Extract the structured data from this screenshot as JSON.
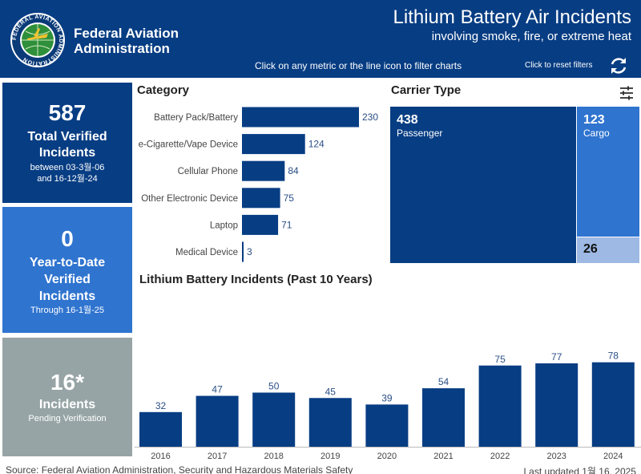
{
  "header": {
    "agency_line1": "Federal Aviation",
    "agency_line2": "Administration",
    "seal_text": "FEDERAL AVIATION ADMINISTRATION",
    "title": "Lithium Battery Air Incidents",
    "subtitle": "involving smoke, fire, or extreme heat",
    "filter_hint": "Click on any metric or the line icon to filter charts",
    "reset_hint": "Click to reset filters",
    "reset_icon": "refresh-icon"
  },
  "kpis": {
    "total": {
      "value": "587",
      "label_1": "Total Verified",
      "label_2": "Incidents",
      "note_1": "between 03-3월-06",
      "note_2": "and 16-12월-24"
    },
    "ytd": {
      "value": "0",
      "label_1": "Year-to-Date",
      "label_2": "Verified",
      "label_3": "Incidents",
      "note": "Through 16-1월-25"
    },
    "pending": {
      "value": "16*",
      "label": "Incidents",
      "note": "Pending Verification"
    }
  },
  "category": {
    "title": "Category",
    "chart_data": {
      "type": "bar",
      "orientation": "horizontal",
      "categories": [
        "Battery Pack/Battery",
        "e-Cigarette/Vape Device",
        "Cellular Phone",
        "Other Electronic Device",
        "Laptop",
        "Medical Device"
      ],
      "values": [
        230,
        124,
        84,
        75,
        71,
        3
      ],
      "color": "#073d83"
    }
  },
  "carrier": {
    "title": "Carrier Type",
    "filter_icon": "filter-lines-icon",
    "passenger": {
      "value": "438",
      "name": "Passenger"
    },
    "cargo": {
      "value": "123",
      "name": "Cargo"
    },
    "other": {
      "value": "26"
    },
    "colors": {
      "passenger": "#073d83",
      "cargo": "#2f74cf",
      "other": "#9db9e4"
    }
  },
  "yearly": {
    "title": "Lithium Battery Incidents (Past 10 Years)",
    "chart_data": {
      "type": "bar",
      "categories": [
        "2016",
        "2017",
        "2018",
        "2019",
        "2020",
        "2021",
        "2022",
        "2023",
        "2024"
      ],
      "values": [
        32,
        47,
        50,
        45,
        39,
        54,
        75,
        77,
        78
      ],
      "color": "#073d83"
    }
  },
  "footer": {
    "source": "Source: Federal Aviation Administration, Security and Hazardous Materials Safety",
    "updated": "Last updated 1월 16, 2025"
  }
}
